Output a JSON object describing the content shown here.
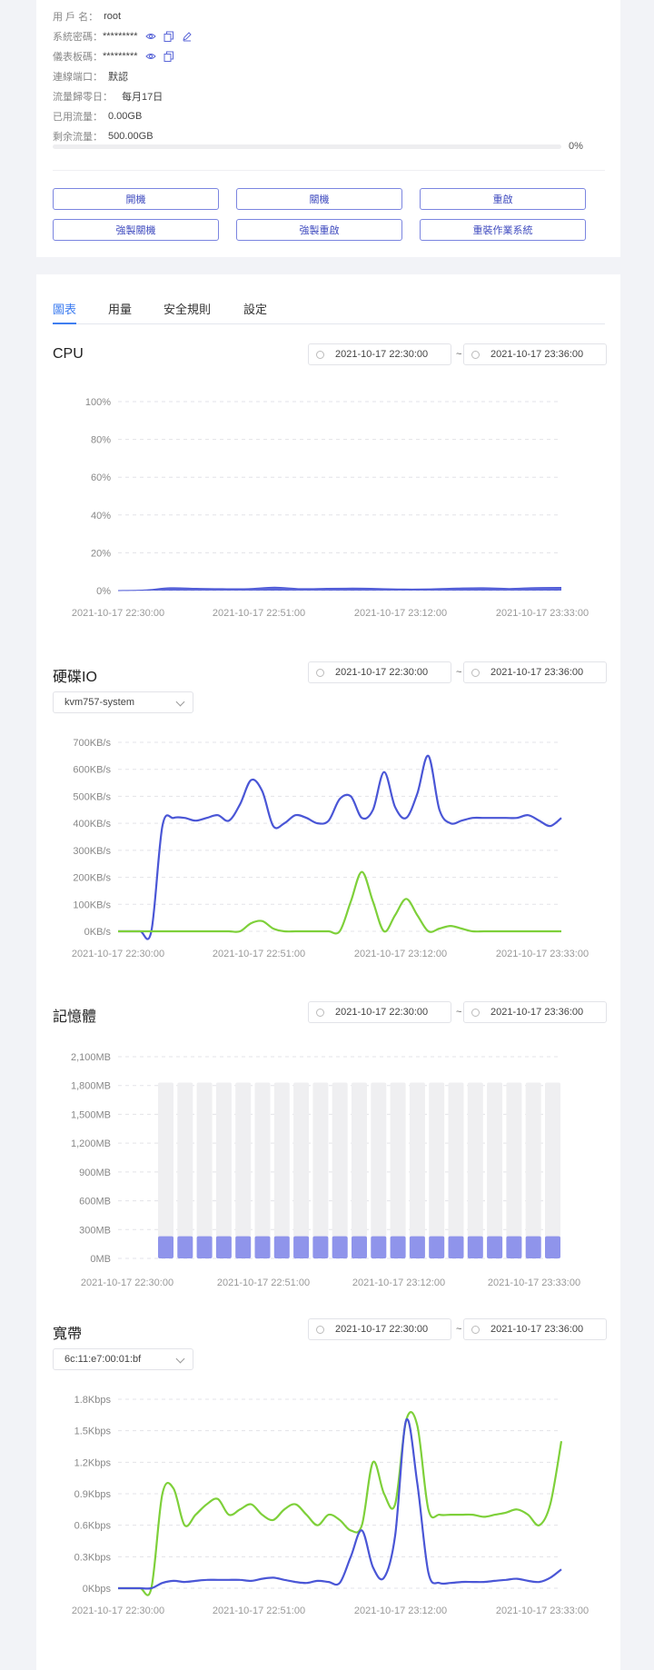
{
  "info": {
    "username_label": "用 戶 名：",
    "username_value": "root",
    "syspass_label": "系統密碼：",
    "syspass_value": "*********",
    "dashpass_label": "儀表板碼：",
    "dashpass_value": "*********",
    "port_label": "連線端口：",
    "port_value": "默認",
    "reset_label": "流量歸零日：",
    "reset_value": "每月17日",
    "used_label": "已用流量：",
    "used_value": "0.00GB",
    "remain_label": "剩余流量：",
    "remain_value": "500.00GB",
    "usage_percent": 0,
    "usage_text": "0%"
  },
  "actions": {
    "power_on": "開機",
    "power_off": "關機",
    "reboot": "重啟",
    "force_off": "強製關機",
    "force_reboot": "強製重啟",
    "reinstall": "重裝作業系統"
  },
  "tabs": [
    {
      "label": "圖表",
      "active": true
    },
    {
      "label": "用量",
      "active": false
    },
    {
      "label": "安全規則",
      "active": false
    },
    {
      "label": "設定",
      "active": false
    }
  ],
  "sections": {
    "cpu": {
      "title": "CPU",
      "start": "2021-10-17 22:30:00",
      "end": "2021-10-17 23:36:00"
    },
    "disk": {
      "title": "硬碟IO",
      "start": "2021-10-17 22:30:00",
      "end": "2021-10-17 23:36:00",
      "select": "kvm757-system"
    },
    "memory": {
      "title": "記憶體",
      "start": "2021-10-17 22:30:00",
      "end": "2021-10-17 23:36:00"
    },
    "bandwidth": {
      "title": "寬帶",
      "start": "2021-10-17 22:30:00",
      "end": "2021-10-17 23:36:00",
      "select": "6c:11:e7:00:01:bf"
    }
  },
  "date_separator": "~",
  "colors": {
    "accent": "#3f7ef0",
    "series_blue": "#4a56d6",
    "series_green": "#7ed03a",
    "bar_fill": "#8f94eb",
    "bar_bg": "#efeff1"
  },
  "chart_data": [
    {
      "type": "area",
      "name": "cpu",
      "x_ticks": [
        "2021-10-17 22:30:00",
        "2021-10-17 22:51:00",
        "2021-10-17 23:12:00",
        "2021-10-17 23:33:00"
      ],
      "y_ticks": [
        "0%",
        "20%",
        "40%",
        "60%",
        "80%",
        "100%"
      ],
      "ylim": [
        0,
        100
      ],
      "series": [
        {
          "values": [
            0,
            0.3,
            1.5,
            1.2,
            1,
            1,
            1.8,
            1,
            1.2,
            1.3,
            1.1,
            0.8,
            0.9,
            1.3,
            1.5,
            1.1,
            1.6,
            1.7
          ]
        }
      ]
    },
    {
      "type": "line",
      "name": "disk",
      "x_ticks": [
        "2021-10-17 22:30:00",
        "2021-10-17 22:51:00",
        "2021-10-17 23:12:00",
        "2021-10-17 23:33:00"
      ],
      "y_ticks": [
        "0KB/s",
        "100KB/s",
        "200KB/s",
        "300KB/s",
        "400KB/s",
        "500KB/s",
        "600KB/s",
        "700KB/s"
      ],
      "ylim": [
        0,
        700
      ],
      "series": [
        {
          "values": [
            0,
            0,
            0,
            0,
            390,
            420,
            420,
            410,
            420,
            430,
            410,
            470,
            560,
            520,
            390,
            400,
            430,
            420,
            400,
            410,
            490,
            500,
            420,
            450,
            590,
            460,
            420,
            510,
            650,
            450,
            400,
            410,
            420,
            420,
            420,
            420,
            420,
            430,
            410,
            390,
            420
          ]
        },
        {
          "values": [
            0,
            0,
            0,
            0,
            0,
            0,
            0,
            0,
            0,
            0,
            0,
            0,
            30,
            38,
            10,
            0,
            0,
            0,
            0,
            0,
            0,
            110,
            220,
            110,
            0,
            60,
            120,
            60,
            0,
            10,
            20,
            10,
            0,
            0,
            0,
            0,
            0,
            0,
            0,
            0,
            0
          ]
        }
      ]
    },
    {
      "type": "bar",
      "name": "memory",
      "x_ticks": [
        "2021-10-17 22:30:00",
        "2021-10-17 22:51:00",
        "2021-10-17 23:12:00",
        "2021-10-17 23:33:00"
      ],
      "y_ticks": [
        "0MB",
        "300MB",
        "600MB",
        "900MB",
        "1,200MB",
        "1,500MB",
        "1,800MB",
        "2,100MB"
      ],
      "ylim": [
        0,
        2100
      ],
      "total": 1830,
      "values": [
        230,
        230,
        230,
        230,
        230,
        230,
        230,
        230,
        230,
        230,
        230,
        230,
        230,
        230,
        230,
        230,
        230,
        230,
        230,
        230,
        230
      ]
    },
    {
      "type": "line",
      "name": "bandwidth",
      "x_ticks": [
        "2021-10-17 22:30:00",
        "2021-10-17 22:51:00",
        "2021-10-17 23:12:00",
        "2021-10-17 23:33:00"
      ],
      "y_ticks": [
        "0Kbps",
        "0.3Kbps",
        "0.6Kbps",
        "0.9Kbps",
        "1.2Kbps",
        "1.5Kbps",
        "1.8Kbps"
      ],
      "ylim": [
        0,
        1.8
      ],
      "series": [
        {
          "values": [
            0,
            0,
            0,
            0,
            0.9,
            0.95,
            0.6,
            0.7,
            0.8,
            0.85,
            0.7,
            0.75,
            0.8,
            0.7,
            0.65,
            0.75,
            0.8,
            0.7,
            0.6,
            0.7,
            0.65,
            0.55,
            0.6,
            1.2,
            0.9,
            0.8,
            1.6,
            1.55,
            0.75,
            0.7,
            0.7,
            0.7,
            0.7,
            0.68,
            0.7,
            0.72,
            0.75,
            0.7,
            0.6,
            0.8,
            1.4
          ]
        },
        {
          "values": [
            0,
            0,
            0,
            0,
            0.05,
            0.07,
            0.06,
            0.07,
            0.08,
            0.08,
            0.08,
            0.08,
            0.07,
            0.09,
            0.1,
            0.08,
            0.06,
            0.05,
            0.07,
            0.06,
            0.05,
            0.3,
            0.55,
            0.2,
            0.1,
            0.5,
            1.6,
            1.0,
            0.15,
            0.05,
            0.05,
            0.06,
            0.06,
            0.06,
            0.07,
            0.08,
            0.09,
            0.07,
            0.06,
            0.1,
            0.18
          ]
        }
      ]
    }
  ]
}
